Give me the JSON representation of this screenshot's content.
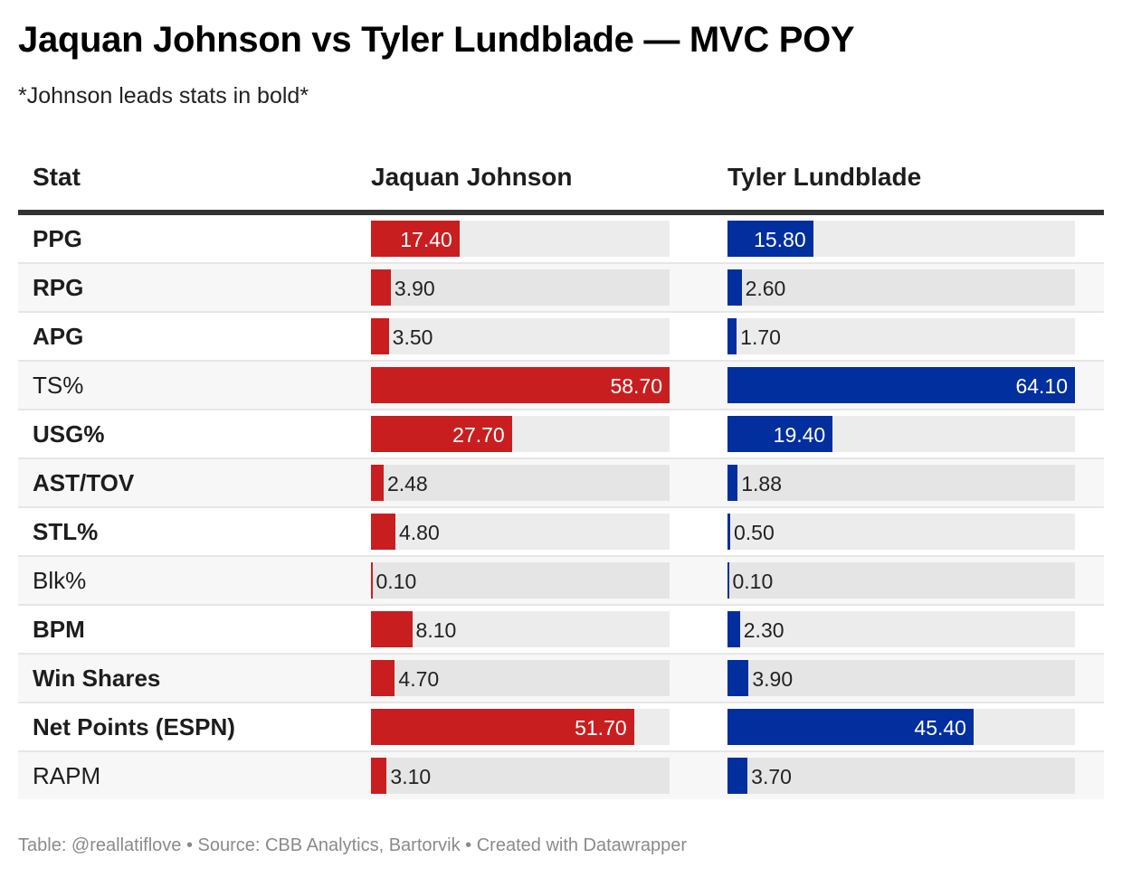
{
  "title": "Jaquan Johnson vs Tyler Lundblade — MVC POY",
  "subtitle": "*Johnson leads stats in bold*",
  "footer": "Table: @reallatiflove • Source: CBB Analytics, Bartorvik • Created with Datawrapper",
  "colors": {
    "johnson": "#c91e1f",
    "lundblade": "#012f9e",
    "header_rule": "#333333"
  },
  "chart_data": {
    "type": "table",
    "title": "Jaquan Johnson vs Tyler Lundblade — MVC POY",
    "subtitle": "*Johnson leads stats in bold*",
    "columns": [
      "Stat",
      "Jaquan Johnson",
      "Tyler Lundblade"
    ],
    "rows": [
      {
        "stat": "PPG",
        "johnson": 17.4,
        "lundblade": 15.8,
        "johnson_leads": true
      },
      {
        "stat": "RPG",
        "johnson": 3.9,
        "lundblade": 2.6,
        "johnson_leads": true
      },
      {
        "stat": "APG",
        "johnson": 3.5,
        "lundblade": 1.7,
        "johnson_leads": true
      },
      {
        "stat": "TS%",
        "johnson": 58.7,
        "lundblade": 64.1,
        "johnson_leads": false
      },
      {
        "stat": "USG%",
        "johnson": 27.7,
        "lundblade": 19.4,
        "johnson_leads": true
      },
      {
        "stat": "AST/TOV",
        "johnson": 2.48,
        "lundblade": 1.88,
        "johnson_leads": true
      },
      {
        "stat": "STL%",
        "johnson": 4.8,
        "lundblade": 0.5,
        "johnson_leads": true
      },
      {
        "stat": "Blk%",
        "johnson": 0.1,
        "lundblade": 0.1,
        "johnson_leads": false
      },
      {
        "stat": "BPM",
        "johnson": 8.1,
        "lundblade": 2.3,
        "johnson_leads": true
      },
      {
        "stat": "Win Shares",
        "johnson": 4.7,
        "lundblade": 3.9,
        "johnson_leads": true
      },
      {
        "stat": "Net Points (ESPN)",
        "johnson": 51.7,
        "lundblade": 45.4,
        "johnson_leads": true
      },
      {
        "stat": "RAPM",
        "johnson": 3.1,
        "lundblade": 3.7,
        "johnson_leads": false
      }
    ],
    "value_format": "2 decimals"
  }
}
